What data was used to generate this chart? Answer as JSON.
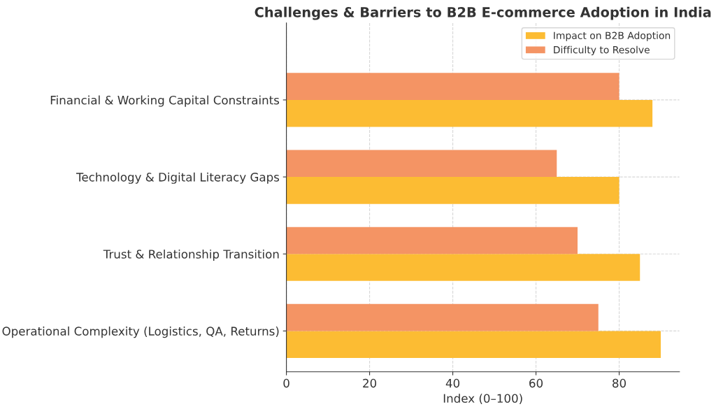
{
  "chart_data": {
    "type": "bar",
    "orientation": "horizontal",
    "title": "Challenges & Barriers to B2B E-commerce Adoption in India",
    "xlabel": "Index (0–100)",
    "categories": [
      "Financial & Working Capital Constraints",
      "Technology & Digital Literacy Gaps",
      "Trust & Relationship Transition",
      "Operational Complexity (Logistics, QA, Returns)"
    ],
    "series": [
      {
        "name": "Impact on B2B Adoption",
        "color": "#fcbc33",
        "values": [
          88,
          80,
          85,
          90
        ]
      },
      {
        "name": "Difficulty to Resolve",
        "color": "#f49464",
        "values": [
          80,
          65,
          70,
          75
        ]
      }
    ],
    "xlim": [
      0,
      94.5
    ],
    "xticks": [
      0,
      20,
      40,
      60,
      80
    ],
    "grid": true,
    "legend": "top right"
  }
}
